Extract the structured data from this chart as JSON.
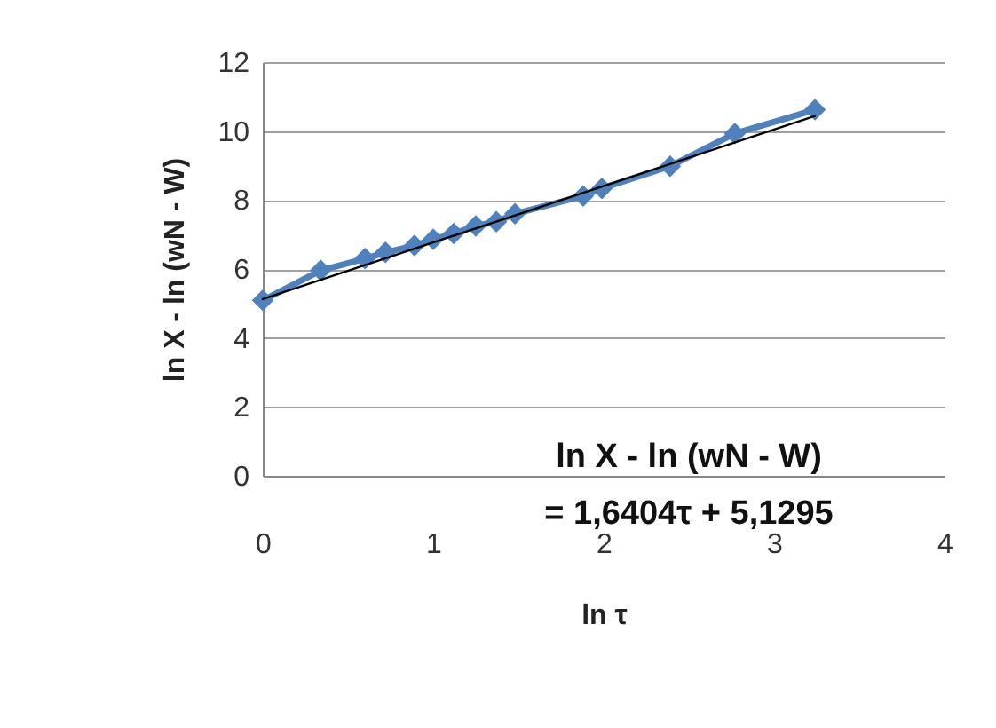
{
  "chart_data": {
    "type": "line",
    "xlabel": "ln  τ",
    "ylabel": "ln X - ln (wN - W)",
    "annotations": [
      "ln X - ln (wN - W)\n= 1,6404τ + 5,1295"
    ],
    "series": [
      {
        "type": "line",
        "color": "#4f81bd",
        "marker": "diamond",
        "x": [
          0,
          0.34,
          0.6,
          0.72,
          0.89,
          1.0,
          1.12,
          1.25,
          1.37,
          1.48,
          1.88,
          1.99,
          2.39,
          2.77,
          3.24
        ],
        "values": [
          5.09,
          5.96,
          6.3,
          6.48,
          6.68,
          6.86,
          7.03,
          7.25,
          7.37,
          7.6,
          8.12,
          8.34,
          8.98,
          9.93,
          10.62
        ]
      },
      {
        "type": "line",
        "color": "#000000",
        "marker": "none",
        "x": [
          0,
          3.24
        ],
        "values": [
          5.13,
          10.44
        ]
      }
    ],
    "xlim": [
      0,
      4
    ],
    "xticks": [
      0,
      1,
      2,
      3,
      4
    ],
    "ylim": [
      0,
      12
    ],
    "yticks": [
      0,
      2,
      4,
      6,
      8,
      10,
      12
    ],
    "grid": "y"
  }
}
